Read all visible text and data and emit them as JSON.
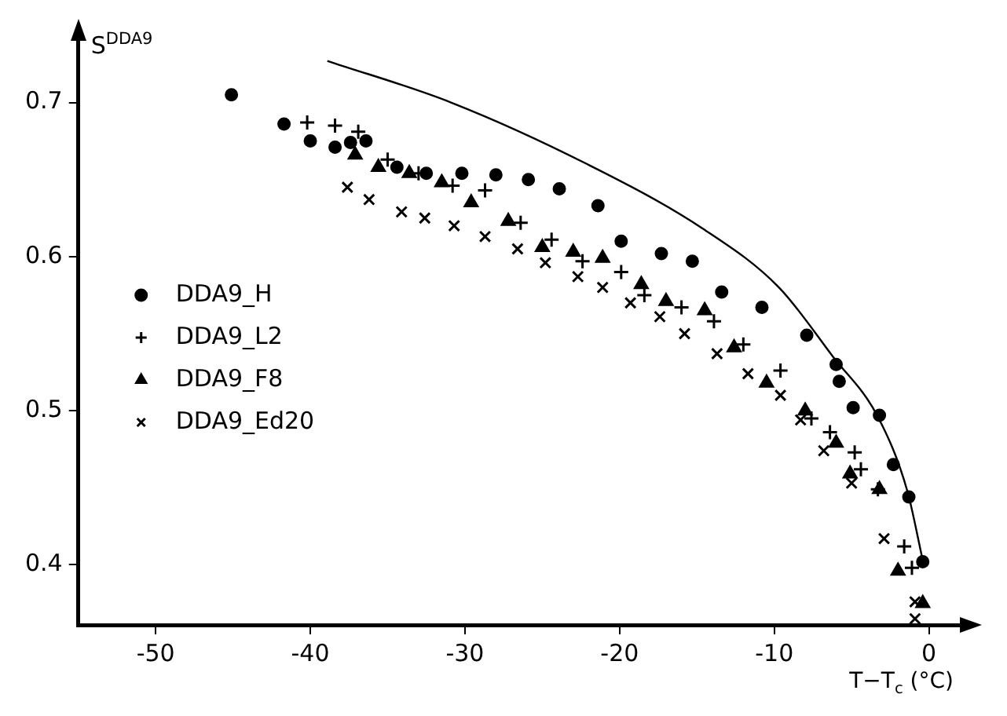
{
  "chart_data": {
    "type": "scatter",
    "ylabel": "S$^{DDA9}$",
    "xlabel": "T−T$_{c}$ (°C)",
    "xlim": [
      -55,
      2
    ],
    "ylim": [
      0.361,
      0.74
    ],
    "xticks": [
      -50,
      -40,
      -30,
      -20,
      -10,
      0
    ],
    "yticks": [
      0.4,
      0.5,
      0.6,
      0.7
    ],
    "grid": false,
    "legend": "left",
    "series": [
      {
        "name": "DDA9_H",
        "color": "#000000",
        "marker": "circle",
        "x": [
          -45.1,
          -41.7,
          -40.0,
          -38.4,
          -37.4,
          -36.4,
          -34.4,
          -32.5,
          -30.2,
          -28.0,
          -25.9,
          -23.9,
          -21.4,
          -19.9,
          -17.3,
          -15.3,
          -13.4,
          -10.8,
          -7.9,
          -6.0,
          -5.8,
          -4.9,
          -3.2,
          -2.3,
          -1.3,
          -0.4
        ],
        "values": [
          0.705,
          0.686,
          0.675,
          0.671,
          0.674,
          0.675,
          0.658,
          0.654,
          0.654,
          0.653,
          0.65,
          0.644,
          0.633,
          0.61,
          0.602,
          0.597,
          0.577,
          0.567,
          0.549,
          0.53,
          0.519,
          0.502,
          0.497,
          0.465,
          0.444,
          0.402
        ]
      },
      {
        "name": "DDA9_L2",
        "color": "#000000",
        "marker": "plus",
        "x": [
          -40.2,
          -38.4,
          -36.9,
          -35.0,
          -33.0,
          -30.8,
          -28.7,
          -26.4,
          -24.4,
          -22.4,
          -19.9,
          -18.4,
          -16.0,
          -13.9,
          -12.0,
          -9.6,
          -7.6,
          -6.4,
          -4.8,
          -4.4,
          -3.3,
          -1.6,
          -1.1
        ],
        "values": [
          0.687,
          0.685,
          0.681,
          0.663,
          0.654,
          0.646,
          0.643,
          0.622,
          0.611,
          0.597,
          0.59,
          0.575,
          0.567,
          0.558,
          0.543,
          0.526,
          0.495,
          0.486,
          0.473,
          0.462,
          0.449,
          0.412,
          0.398
        ]
      },
      {
        "name": "DDA9_F8",
        "color": "#000000",
        "marker": "triangle",
        "x": [
          -37.1,
          -35.6,
          -33.6,
          -31.5,
          -29.6,
          -27.2,
          -25.0,
          -23.0,
          -21.1,
          -18.6,
          -17.0,
          -14.5,
          -12.6,
          -10.5,
          -8.0,
          -6.0,
          -5.1,
          -3.2,
          -2.0,
          -0.4
        ],
        "values": [
          0.666,
          0.658,
          0.654,
          0.648,
          0.635,
          0.623,
          0.606,
          0.603,
          0.599,
          0.582,
          0.571,
          0.565,
          0.541,
          0.518,
          0.5,
          0.479,
          0.459,
          0.449,
          0.396,
          0.375
        ]
      },
      {
        "name": "DDA9_Ed20",
        "color": "#000000",
        "marker": "cross",
        "x": [
          -37.6,
          -36.2,
          -34.1,
          -32.6,
          -30.7,
          -28.7,
          -26.6,
          -24.8,
          -22.7,
          -21.1,
          -19.3,
          -17.4,
          -15.8,
          -13.7,
          -11.7,
          -9.6,
          -8.3,
          -6.8,
          -5.0,
          -2.9,
          -0.9,
          -0.9
        ],
        "values": [
          0.645,
          0.637,
          0.629,
          0.625,
          0.62,
          0.613,
          0.605,
          0.596,
          0.587,
          0.58,
          0.57,
          0.561,
          0.55,
          0.537,
          0.524,
          0.51,
          0.494,
          0.474,
          0.453,
          0.417,
          0.376,
          0.365
        ]
      },
      {
        "type": "line",
        "color": "#000000",
        "marker": "none",
        "x": [
          -38.9,
          -30.9,
          -22.1,
          -14.6,
          -9.7,
          -6.2,
          -3.3,
          -1.4,
          -0.4
        ],
        "values": [
          0.727,
          0.7,
          0.66,
          0.618,
          0.58,
          0.535,
          0.496,
          0.448,
          0.403
        ]
      }
    ]
  }
}
